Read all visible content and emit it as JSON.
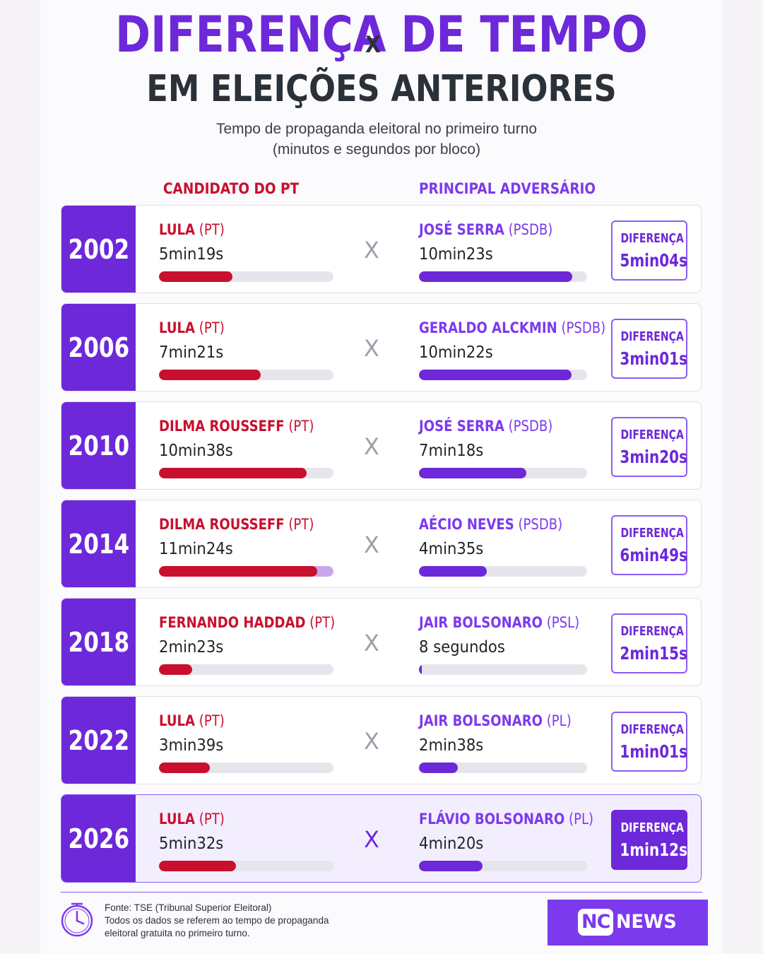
{
  "header": {
    "title": "DIFERENÇA DE TEMPO",
    "title2": "EM ELEIÇÕES ANTERIORES",
    "subtitle1": "Tempo de propaganda eleitoral no primeiro turno",
    "subtitle2": "(minutos e segundos por bloco)"
  },
  "columns": {
    "pt": "CANDIDATO DO PT",
    "vs": "X",
    "adv": "PRINCIPAL ADVERSÁRIO"
  },
  "colors": {
    "purple": "#6d28d9",
    "red": "#c8102e",
    "lavender": "#c9a7ee"
  },
  "chart_data": {
    "type": "bar",
    "unit": "seconds",
    "max_seconds": 684,
    "vs_label": "X",
    "diff_label": "DIFERENÇA",
    "rows": [
      {
        "year": "2002",
        "pt_name": "LULA",
        "pt_party": "(PT)",
        "pt_time": "5min19s",
        "pt_seconds": 319,
        "adv_name": "JOSÉ SERRA",
        "adv_party": "(PSDB)",
        "adv_time": "10min23s",
        "adv_seconds": 623,
        "diff": "5min04s"
      },
      {
        "year": "2006",
        "pt_name": "LULA",
        "pt_party": "(PT)",
        "pt_time": "7min21s",
        "pt_seconds": 441,
        "adv_name": "GERALDO ALCKMIN",
        "adv_party": "(PSDB)",
        "adv_time": "10min22s",
        "adv_seconds": 622,
        "diff": "3min01s"
      },
      {
        "year": "2010",
        "pt_name": "DILMA ROUSSEFF",
        "pt_party": "(PT)",
        "pt_time": "10min38s",
        "pt_seconds": 638,
        "adv_name": "JOSÉ SERRA",
        "adv_party": "(PSDB)",
        "adv_time": "7min18s",
        "adv_seconds": 438,
        "diff": "3min20s"
      },
      {
        "year": "2014",
        "pt_name": "DILMA ROUSSEFF",
        "pt_party": "(PT)",
        "pt_time": "11min24s",
        "pt_seconds": 684,
        "adv_name": "AÉCIO NEVES",
        "adv_party": "(PSDB)",
        "adv_time": "4min35s",
        "adv_seconds": 275,
        "diff": "6min49s"
      },
      {
        "year": "2018",
        "pt_name": "FERNANDO HADDAD",
        "pt_party": "(PT)",
        "pt_time": "2min23s",
        "pt_seconds": 143,
        "adv_name": "JAIR BOLSONARO",
        "adv_party": "(PSL)",
        "adv_time": "8 segundos",
        "adv_seconds": 8,
        "diff": "2min15s"
      },
      {
        "year": "2022",
        "pt_name": "LULA",
        "pt_party": "(PT)",
        "pt_time": "3min39s",
        "pt_seconds": 219,
        "adv_name": "JAIR BOLSONARO",
        "adv_party": "(PL)",
        "adv_time": "2min38s",
        "adv_seconds": 158,
        "diff": "1min01s"
      },
      {
        "year": "2026",
        "pt_name": "LULA",
        "pt_party": "(PT)",
        "pt_time": "5min32s",
        "pt_seconds": 332,
        "adv_name": "FLÁVIO BOLSONARO",
        "adv_party": "(PL)",
        "adv_time": "4min20s",
        "adv_seconds": 260,
        "diff": "1min12s",
        "highlight": true
      }
    ]
  },
  "footer": {
    "source": "Fonte: TSE (Tribunal Superior Eleitoral)",
    "note1": "Todos os dados se referem ao tempo de propaganda",
    "note2": "eleitoral gratuita no primeiro turno.",
    "icon": "clock-icon",
    "logo_nc": "NC",
    "logo_news": "NEWS"
  }
}
